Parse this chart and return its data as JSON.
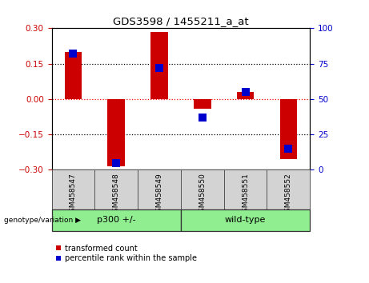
{
  "title": "GDS3598 / 1455211_a_at",
  "samples": [
    "GSM458547",
    "GSM458548",
    "GSM458549",
    "GSM458550",
    "GSM458551",
    "GSM458552"
  ],
  "red_values": [
    0.2,
    -0.285,
    0.285,
    -0.04,
    0.03,
    -0.255
  ],
  "blue_values_pct": [
    82,
    5,
    72,
    37,
    55,
    15
  ],
  "ylim_left": [
    -0.3,
    0.3
  ],
  "ylim_right": [
    0,
    100
  ],
  "yticks_left": [
    -0.3,
    -0.15,
    0,
    0.15,
    0.3
  ],
  "yticks_right": [
    0,
    25,
    50,
    75,
    100
  ],
  "left_tick_color": "#cc0000",
  "right_tick_color": "#0000cc",
  "bar_color": "#cc0000",
  "blue_color": "#0000cc",
  "bar_width": 0.4,
  "blue_marker_size": 7,
  "legend_labels": [
    "transformed count",
    "percentile rank within the sample"
  ],
  "genotype_label": "genotype/variation",
  "group1_label": "p300 +/-",
  "group2_label": "wild-type",
  "group_split": 3,
  "sample_bg": "#d3d3d3",
  "group_color": "#90EE90"
}
